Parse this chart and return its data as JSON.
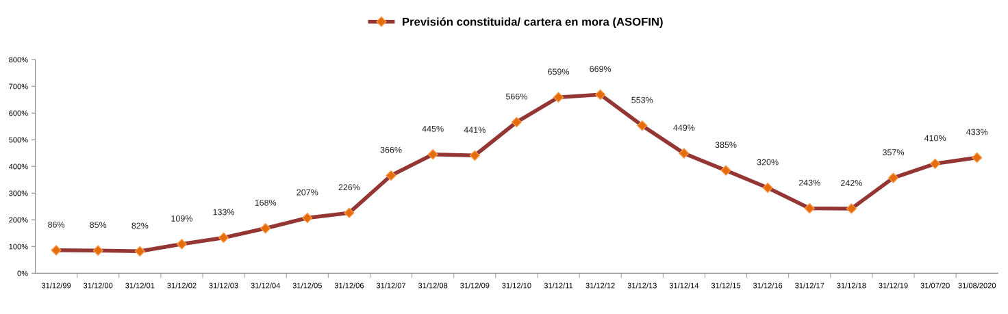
{
  "chart_data": {
    "type": "line",
    "categories": [
      "31/12/99",
      "31/12/00",
      "31/12/01",
      "31/12/02",
      "31/12/03",
      "31/12/04",
      "31/12/05",
      "31/12/06",
      "31/12/07",
      "31/12/08",
      "31/12/09",
      "31/12/10",
      "31/12/11",
      "31/12/12",
      "31/12/13",
      "31/12/14",
      "31/12/15",
      "31/12/16",
      "31/12/17",
      "31/12/18",
      "31/12/19",
      "31/07/20",
      "31/08/2020"
    ],
    "series": [
      {
        "name": "Previsión constituida/ cartera en mora (ASOFIN)",
        "color": "#943634",
        "values": [
          86,
          85,
          82,
          109,
          133,
          168,
          207,
          226,
          366,
          445,
          441,
          566,
          659,
          669,
          553,
          449,
          385,
          320,
          243,
          242,
          357,
          410,
          433
        ],
        "value_labels": [
          "86%",
          "85%",
          "82%",
          "109%",
          "133%",
          "168%",
          "207%",
          "226%",
          "366%",
          "445%",
          "441%",
          "566%",
          "659%",
          "669%",
          "553%",
          "449%",
          "385%",
          "320%",
          "243%",
          "242%",
          "357%",
          "410%",
          "433%"
        ]
      }
    ],
    "ylim": [
      0,
      800
    ],
    "yticks": [
      {
        "value": 0,
        "label": "0%"
      },
      {
        "value": 100,
        "label": "100%"
      },
      {
        "value": 200,
        "label": "200%"
      },
      {
        "value": 300,
        "label": "300%"
      },
      {
        "value": 400,
        "label": "400%"
      },
      {
        "value": 500,
        "label": "500%"
      },
      {
        "value": 600,
        "label": "600%"
      },
      {
        "value": 700,
        "label": "700%"
      },
      {
        "value": 800,
        "label": "800%"
      }
    ],
    "grid": false,
    "legend": "top",
    "marker": "diamond",
    "line_style": "solid"
  }
}
